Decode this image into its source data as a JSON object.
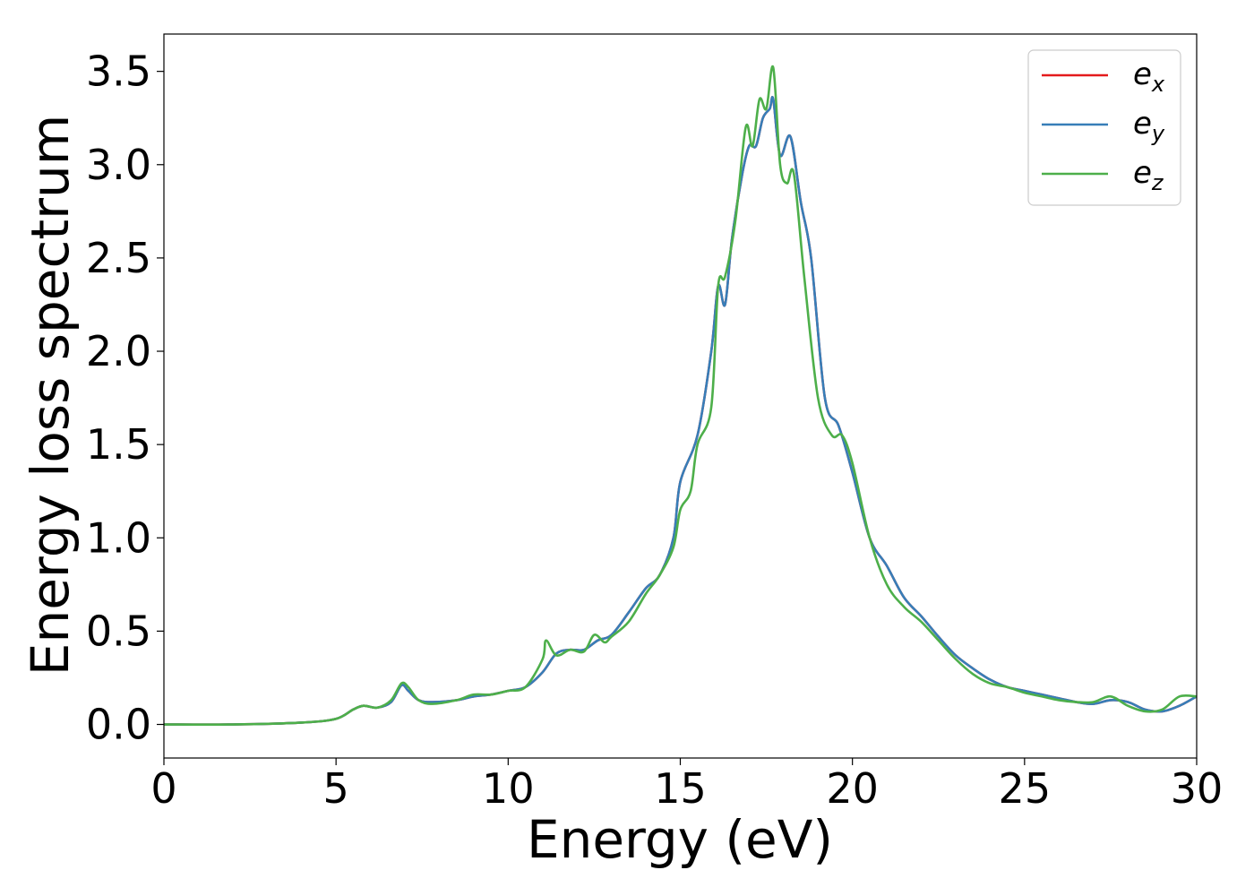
{
  "chart_data": {
    "type": "line",
    "title": "",
    "xlabel": "Energy (eV)",
    "ylabel": "Energy loss spectrum",
    "xlim": [
      0,
      30
    ],
    "ylim": [
      -0.18,
      3.7
    ],
    "xticks": [
      0,
      5,
      10,
      15,
      20,
      25,
      30
    ],
    "xtick_labels": [
      "0",
      "5",
      "10",
      "15",
      "20",
      "25",
      "30"
    ],
    "yticks": [
      0.0,
      0.5,
      1.0,
      1.5,
      2.0,
      2.5,
      3.0,
      3.5
    ],
    "ytick_labels": [
      "0.0",
      "0.5",
      "1.0",
      "1.5",
      "2.0",
      "2.5",
      "3.0",
      "3.5"
    ],
    "grid": false,
    "legend_position": "top-right",
    "series": [
      {
        "name": "e_x",
        "legend_base": "e",
        "legend_sub": "x",
        "color": "#e41a1c",
        "x": [
          0,
          2,
          4,
          5,
          5.5,
          5.8,
          6.2,
          6.6,
          6.9,
          7.1,
          7.4,
          7.8,
          8.5,
          9.0,
          9.5,
          10.0,
          10.5,
          11.0,
          11.4,
          11.8,
          12.2,
          12.6,
          13.0,
          13.5,
          14.0,
          14.4,
          14.8,
          15.0,
          15.5,
          15.9,
          16.1,
          16.3,
          16.5,
          16.8,
          17.0,
          17.2,
          17.4,
          17.6,
          17.7,
          17.9,
          18.2,
          18.5,
          18.8,
          19.2,
          19.6,
          20.0,
          20.5,
          21.0,
          21.5,
          22.0,
          22.5,
          23.0,
          23.5,
          24.0,
          24.5,
          25.0,
          25.5,
          26.0,
          26.5,
          27.0,
          27.5,
          28.0,
          28.5,
          29.0,
          29.5,
          30.0
        ],
        "values": [
          0.0,
          0.0,
          0.01,
          0.03,
          0.08,
          0.1,
          0.09,
          0.12,
          0.21,
          0.18,
          0.13,
          0.12,
          0.13,
          0.15,
          0.16,
          0.18,
          0.2,
          0.28,
          0.38,
          0.4,
          0.4,
          0.45,
          0.48,
          0.6,
          0.73,
          0.8,
          1.0,
          1.3,
          1.55,
          2.0,
          2.35,
          2.25,
          2.6,
          2.95,
          3.1,
          3.1,
          3.25,
          3.3,
          3.35,
          3.05,
          3.15,
          2.8,
          2.5,
          1.75,
          1.6,
          1.35,
          1.0,
          0.85,
          0.68,
          0.58,
          0.47,
          0.37,
          0.3,
          0.24,
          0.2,
          0.18,
          0.16,
          0.14,
          0.12,
          0.11,
          0.13,
          0.12,
          0.08,
          0.07,
          0.1,
          0.15
        ]
      },
      {
        "name": "e_y",
        "legend_base": "e",
        "legend_sub": "y",
        "color": "#377eb8",
        "x": [
          0,
          2,
          4,
          5,
          5.5,
          5.8,
          6.2,
          6.6,
          6.9,
          7.1,
          7.4,
          7.8,
          8.5,
          9.0,
          9.5,
          10.0,
          10.5,
          11.0,
          11.4,
          11.8,
          12.2,
          12.6,
          13.0,
          13.5,
          14.0,
          14.4,
          14.8,
          15.0,
          15.5,
          15.9,
          16.1,
          16.3,
          16.5,
          16.8,
          17.0,
          17.2,
          17.4,
          17.6,
          17.7,
          17.9,
          18.2,
          18.5,
          18.8,
          19.2,
          19.6,
          20.0,
          20.5,
          21.0,
          21.5,
          22.0,
          22.5,
          23.0,
          23.5,
          24.0,
          24.5,
          25.0,
          25.5,
          26.0,
          26.5,
          27.0,
          27.5,
          28.0,
          28.5,
          29.0,
          29.5,
          30.0
        ],
        "values": [
          0.0,
          0.0,
          0.01,
          0.03,
          0.08,
          0.1,
          0.09,
          0.12,
          0.21,
          0.18,
          0.13,
          0.12,
          0.13,
          0.15,
          0.16,
          0.18,
          0.2,
          0.28,
          0.38,
          0.4,
          0.4,
          0.45,
          0.48,
          0.6,
          0.73,
          0.8,
          1.0,
          1.3,
          1.55,
          2.0,
          2.35,
          2.25,
          2.6,
          2.95,
          3.1,
          3.1,
          3.25,
          3.3,
          3.35,
          3.05,
          3.15,
          2.8,
          2.5,
          1.75,
          1.6,
          1.35,
          1.0,
          0.85,
          0.68,
          0.58,
          0.47,
          0.37,
          0.3,
          0.24,
          0.2,
          0.18,
          0.16,
          0.14,
          0.12,
          0.11,
          0.13,
          0.12,
          0.08,
          0.07,
          0.1,
          0.15
        ]
      },
      {
        "name": "e_z",
        "legend_base": "e",
        "legend_sub": "z",
        "color": "#4daf4a",
        "x": [
          0,
          2,
          4,
          5,
          5.5,
          5.8,
          6.2,
          6.6,
          6.9,
          7.1,
          7.4,
          7.8,
          8.5,
          9.0,
          9.5,
          10.0,
          10.5,
          11.0,
          11.1,
          11.4,
          11.8,
          12.2,
          12.5,
          12.8,
          13.0,
          13.5,
          14.0,
          14.4,
          14.8,
          15.0,
          15.3,
          15.5,
          15.9,
          16.1,
          16.3,
          16.6,
          16.9,
          17.1,
          17.3,
          17.5,
          17.7,
          17.9,
          18.1,
          18.3,
          18.6,
          19.0,
          19.4,
          19.7,
          20.0,
          20.5,
          21.0,
          21.5,
          22.0,
          22.5,
          23.0,
          23.5,
          24.0,
          24.5,
          25.0,
          25.5,
          26.0,
          26.5,
          27.0,
          27.5,
          28.0,
          28.5,
          29.0,
          29.5,
          30.0
        ],
        "values": [
          0.0,
          0.0,
          0.01,
          0.03,
          0.08,
          0.1,
          0.09,
          0.13,
          0.22,
          0.2,
          0.13,
          0.11,
          0.13,
          0.16,
          0.16,
          0.18,
          0.2,
          0.35,
          0.45,
          0.37,
          0.4,
          0.39,
          0.48,
          0.44,
          0.47,
          0.55,
          0.7,
          0.8,
          0.95,
          1.15,
          1.25,
          1.5,
          1.7,
          2.35,
          2.4,
          2.7,
          3.2,
          3.1,
          3.35,
          3.3,
          3.52,
          3.0,
          2.9,
          2.95,
          2.4,
          1.75,
          1.55,
          1.55,
          1.4,
          1.0,
          0.75,
          0.63,
          0.55,
          0.45,
          0.35,
          0.27,
          0.22,
          0.2,
          0.17,
          0.15,
          0.13,
          0.12,
          0.12,
          0.15,
          0.1,
          0.07,
          0.08,
          0.15,
          0.15
        ]
      }
    ]
  }
}
